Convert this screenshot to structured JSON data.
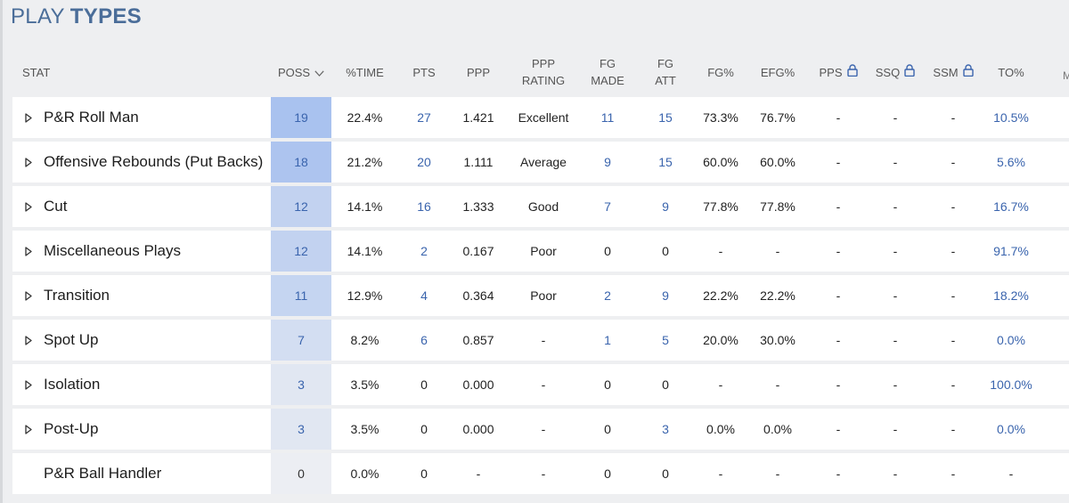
{
  "title": {
    "part1": "PLAY",
    "part2": "TYPES"
  },
  "headers": {
    "stat": "STAT",
    "poss": "POSS",
    "time": "%TIME",
    "pts": "PTS",
    "ppp": "PPP",
    "ppp_rating_1": "PPP",
    "ppp_rating_2": "RATING",
    "fg_made_1": "FG",
    "fg_made_2": "MADE",
    "fg_att_1": "FG",
    "fg_att_2": "ATT",
    "fg_pct": "FG%",
    "efg_pct": "EFG%",
    "pps": "PPS",
    "ssq": "SSQ",
    "ssm": "SSM",
    "to_pct": "TO%",
    "cut": "M"
  },
  "colors": {
    "accent": "#3a64ad",
    "title": "#4a6d99",
    "poss_scale_max": "#a9c2ef",
    "poss_scale_min": "#eceef3"
  },
  "rows": [
    {
      "name": "P&R Roll Man",
      "expandable": true,
      "poss": "19",
      "time": "22.4%",
      "pts": "27",
      "ppp": "1.421",
      "rating": "Excellent",
      "fg_made": "11",
      "fg_att": "15",
      "fg_pct": "73.3%",
      "efg_pct": "76.7%",
      "pps": "-",
      "ssq": "-",
      "ssm": "-",
      "to_pct": "10.5%"
    },
    {
      "name": "Offensive Rebounds (Put Backs)",
      "expandable": true,
      "poss": "18",
      "time": "21.2%",
      "pts": "20",
      "ppp": "1.111",
      "rating": "Average",
      "fg_made": "9",
      "fg_att": "15",
      "fg_pct": "60.0%",
      "efg_pct": "60.0%",
      "pps": "-",
      "ssq": "-",
      "ssm": "-",
      "to_pct": "5.6%"
    },
    {
      "name": "Cut",
      "expandable": true,
      "poss": "12",
      "time": "14.1%",
      "pts": "16",
      "ppp": "1.333",
      "rating": "Good",
      "fg_made": "7",
      "fg_att": "9",
      "fg_pct": "77.8%",
      "efg_pct": "77.8%",
      "pps": "-",
      "ssq": "-",
      "ssm": "-",
      "to_pct": "16.7%"
    },
    {
      "name": "Miscellaneous Plays",
      "expandable": true,
      "poss": "12",
      "time": "14.1%",
      "pts": "2",
      "ppp": "0.167",
      "rating": "Poor",
      "fg_made": "0",
      "fg_att": "0",
      "fg_pct": "-",
      "efg_pct": "-",
      "pps": "-",
      "ssq": "-",
      "ssm": "-",
      "to_pct": "91.7%"
    },
    {
      "name": "Transition",
      "expandable": true,
      "poss": "11",
      "time": "12.9%",
      "pts": "4",
      "ppp": "0.364",
      "rating": "Poor",
      "fg_made": "2",
      "fg_att": "9",
      "fg_pct": "22.2%",
      "efg_pct": "22.2%",
      "pps": "-",
      "ssq": "-",
      "ssm": "-",
      "to_pct": "18.2%"
    },
    {
      "name": "Spot Up",
      "expandable": true,
      "poss": "7",
      "time": "8.2%",
      "pts": "6",
      "ppp": "0.857",
      "rating": "-",
      "fg_made": "1",
      "fg_att": "5",
      "fg_pct": "20.0%",
      "efg_pct": "30.0%",
      "pps": "-",
      "ssq": "-",
      "ssm": "-",
      "to_pct": "0.0%"
    },
    {
      "name": "Isolation",
      "expandable": true,
      "poss": "3",
      "time": "3.5%",
      "pts": "0",
      "ppp": "0.000",
      "rating": "-",
      "fg_made": "0",
      "fg_att": "0",
      "fg_pct": "-",
      "efg_pct": "-",
      "pps": "-",
      "ssq": "-",
      "ssm": "-",
      "to_pct": "100.0%"
    },
    {
      "name": "Post-Up",
      "expandable": true,
      "poss": "3",
      "time": "3.5%",
      "pts": "0",
      "ppp": "0.000",
      "rating": "-",
      "fg_made": "0",
      "fg_att": "3",
      "fg_pct": "0.0%",
      "efg_pct": "0.0%",
      "pps": "-",
      "ssq": "-",
      "ssm": "-",
      "to_pct": "0.0%"
    },
    {
      "name": "P&R Ball Handler",
      "expandable": false,
      "poss": "0",
      "time": "0.0%",
      "pts": "0",
      "ppp": "-",
      "rating": "-",
      "fg_made": "0",
      "fg_att": "0",
      "fg_pct": "-",
      "efg_pct": "-",
      "pps": "-",
      "ssq": "-",
      "ssm": "-",
      "to_pct": "-"
    }
  ]
}
